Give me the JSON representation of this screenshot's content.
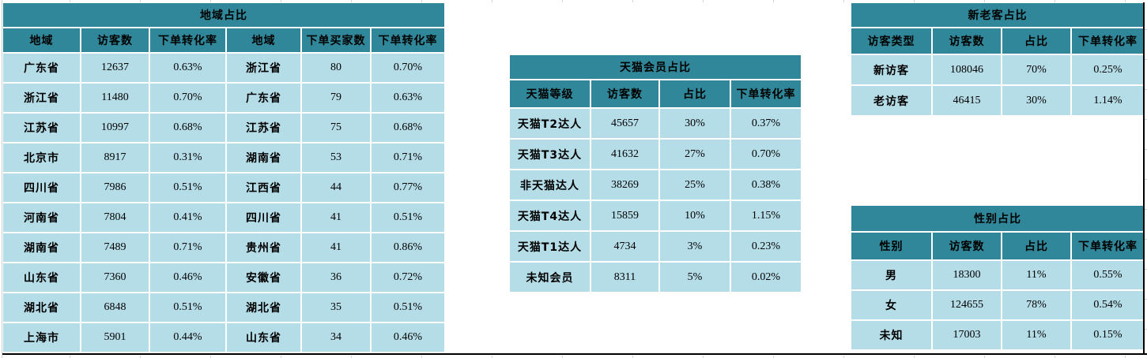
{
  "colors": {
    "header_teal": "#2F8799",
    "cell_blue": "#B5DDE8",
    "cell_border_white": "#FFFFFF",
    "gridline_gray": "#D3D3D3",
    "range_border_black": "#000000",
    "text": "#000000"
  },
  "tables": {
    "region": {
      "title": "地域占比",
      "headers": [
        "地域",
        "访客数",
        "下单转化率",
        "地域",
        "下单买家数",
        "下单转化率"
      ],
      "rows": [
        [
          "广东省",
          "12637",
          "0.63%",
          "浙江省",
          "80",
          "0.70%"
        ],
        [
          "浙江省",
          "11480",
          "0.70%",
          "广东省",
          "79",
          "0.63%"
        ],
        [
          "江苏省",
          "10997",
          "0.68%",
          "江苏省",
          "75",
          "0.68%"
        ],
        [
          "北京市",
          "8917",
          "0.31%",
          "湖南省",
          "53",
          "0.71%"
        ],
        [
          "四川省",
          "7986",
          "0.51%",
          "江西省",
          "44",
          "0.77%"
        ],
        [
          "河南省",
          "7804",
          "0.41%",
          "四川省",
          "41",
          "0.51%"
        ],
        [
          "湖南省",
          "7489",
          "0.71%",
          "贵州省",
          "41",
          "0.86%"
        ],
        [
          "山东省",
          "7360",
          "0.46%",
          "安徽省",
          "36",
          "0.72%"
        ],
        [
          "湖北省",
          "6848",
          "0.51%",
          "湖北省",
          "35",
          "0.51%"
        ],
        [
          "上海市",
          "5901",
          "0.44%",
          "山东省",
          "34",
          "0.46%"
        ]
      ]
    },
    "tmall": {
      "title": "天猫会员占比",
      "headers": [
        "天猫等级",
        "访客数",
        "占比",
        "下单转化率"
      ],
      "rows": [
        [
          "天猫T2达人",
          "45657",
          "30%",
          "0.37%"
        ],
        [
          "天猫T3达人",
          "41632",
          "27%",
          "0.70%"
        ],
        [
          "非天猫达人",
          "38269",
          "25%",
          "0.38%"
        ],
        [
          "天猫T4达人",
          "15859",
          "10%",
          "1.15%"
        ],
        [
          "天猫T1达人",
          "4734",
          "3%",
          "0.23%"
        ],
        [
          "未知会员",
          "8311",
          "5%",
          "0.02%"
        ]
      ]
    },
    "visitor_type": {
      "title": "新老客占比",
      "headers": [
        "访客类型",
        "访客数",
        "占比",
        "下单转化率"
      ],
      "rows": [
        [
          "新访客",
          "108046",
          "70%",
          "0.25%"
        ],
        [
          "老访客",
          "46415",
          "30%",
          "1.14%"
        ]
      ]
    },
    "gender": {
      "title": "性别占比",
      "headers": [
        "性别",
        "访客数",
        "占比",
        "下单转化率"
      ],
      "rows": [
        [
          "男",
          "18300",
          "11%",
          "0.55%"
        ],
        [
          "女",
          "124655",
          "78%",
          "0.54%"
        ],
        [
          "未知",
          "17003",
          "11%",
          "0.15%"
        ]
      ]
    }
  }
}
